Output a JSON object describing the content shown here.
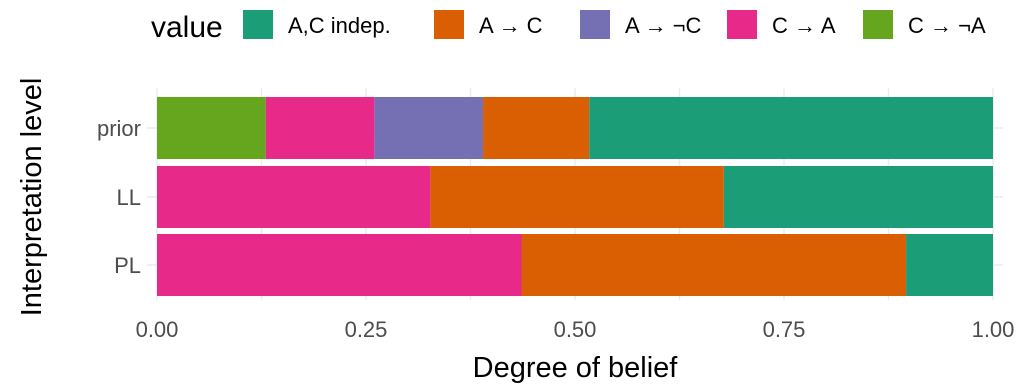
{
  "chart_data": {
    "type": "bar",
    "orientation": "horizontal",
    "stacked": true,
    "xlabel": "Degree of belief",
    "ylabel": "Interpretation level",
    "xlim": [
      0,
      1
    ],
    "xticks": [
      0,
      0.25,
      0.5,
      0.75,
      1
    ],
    "xtick_labels": [
      "0.00",
      "0.25",
      "0.50",
      "0.75",
      "1.00"
    ],
    "grid": true,
    "legend": {
      "title": "value",
      "position": "top",
      "entries": [
        {
          "label": "A,C indep.",
          "color": "#1b9e77"
        },
        {
          "label": "A → C",
          "color": "#d95f02"
        },
        {
          "label": "A → ¬C",
          "color": "#7570b3"
        },
        {
          "label": "C → A",
          "color": "#e7298a"
        },
        {
          "label": "C → ¬A",
          "color": "#66a61e"
        }
      ]
    },
    "categories": [
      "prior",
      "LL",
      "PL"
    ],
    "stack_order": [
      "C → ¬A",
      "C → A",
      "A → ¬C",
      "A → C",
      "A,C indep."
    ],
    "series": [
      {
        "name": "C → ¬A",
        "color": "#66a61e",
        "values": [
          0.13,
          0.0,
          0.0
        ]
      },
      {
        "name": "C → A",
        "color": "#e7298a",
        "values": [
          0.13,
          0.327,
          0.436
        ]
      },
      {
        "name": "A → ¬C",
        "color": "#7570b3",
        "values": [
          0.13,
          0.0,
          0.0
        ]
      },
      {
        "name": "A → C",
        "color": "#d95f02",
        "values": [
          0.127,
          0.351,
          0.46
        ]
      },
      {
        "name": "A,C indep.",
        "color": "#1b9e77",
        "values": [
          0.483,
          0.322,
          0.104
        ]
      }
    ]
  }
}
